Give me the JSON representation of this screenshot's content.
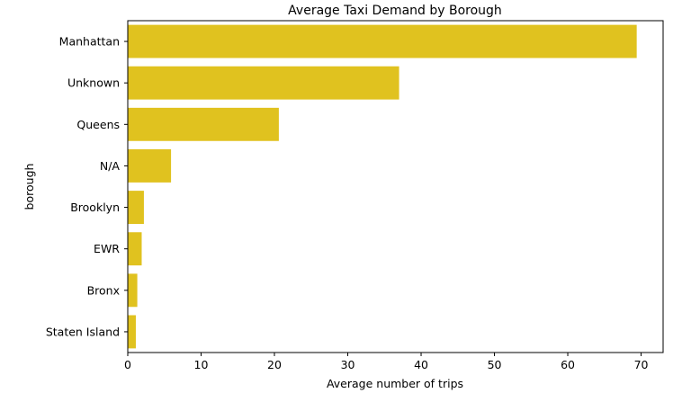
{
  "chart_data": {
    "type": "bar",
    "orientation": "horizontal",
    "title": "Average Taxi Demand by Borough",
    "xlabel": "Average number of trips",
    "ylabel": "borough",
    "categories": [
      "Manhattan",
      "Unknown",
      "Queens",
      "N/A",
      "Brooklyn",
      "EWR",
      "Bronx",
      "Staten Island"
    ],
    "values": [
      69.4,
      37.0,
      20.6,
      5.9,
      2.2,
      1.9,
      1.3,
      1.1
    ],
    "xlim": [
      0,
      73
    ],
    "xticks": [
      0,
      10,
      20,
      30,
      40,
      50,
      60,
      70
    ],
    "grid": false,
    "legend": "none",
    "bar_color": "#E0C21F"
  }
}
